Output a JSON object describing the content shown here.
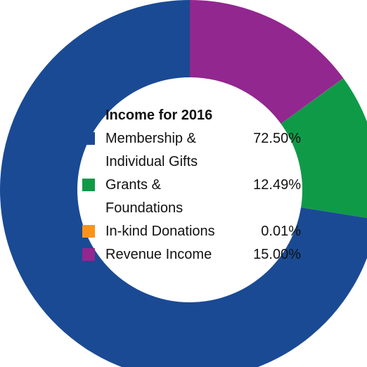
{
  "chart_data": {
    "type": "donut",
    "title": "Income for 2016",
    "categories": [
      "Membership & Individual Gifts",
      "Grants & Foundations",
      "In-kind Donations",
      "Revenue Income"
    ],
    "values": [
      72.5,
      12.49,
      0.01,
      15
    ],
    "value_labels": [
      "72.50%",
      "12.49%",
      "0.01%",
      "15.00%"
    ],
    "colors": [
      "#1a4a94",
      "#0f9a48",
      "#f7941d",
      "#92278f"
    ]
  }
}
